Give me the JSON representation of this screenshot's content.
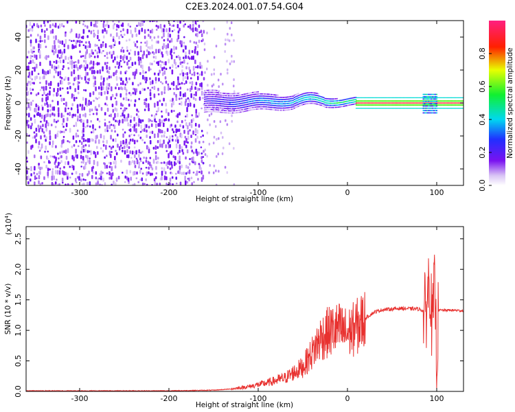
{
  "title": "C2E3.2024.001.07.54.G04",
  "chart_data": [
    {
      "type": "heatmap",
      "xlabel": "Height of straight line (km)",
      "ylabel": "Frequency (Hz)",
      "xlim": [
        -360,
        130
      ],
      "ylim": [
        -50,
        50
      ],
      "xticks": [
        -300,
        -200,
        -100,
        0,
        100
      ],
      "yticks": [
        -40,
        -20,
        0,
        20,
        40
      ],
      "colorbar": {
        "label": "Normalized spectral amplitude",
        "range": [
          0,
          1
        ],
        "ticks": [
          "0.0",
          "0.2",
          "0.4",
          "0.6",
          "0.8"
        ],
        "colormap": "rainbow (white→violet→blue→cyan→green→yellow→red→magenta)"
      },
      "features": [
        {
          "x_range": [
            -360,
            -160
          ],
          "description": "broadband noise, amplitude ~0.05–0.2, all frequencies"
        },
        {
          "x_range": [
            -160,
            10
          ],
          "description": "signal band near 0 Hz, amplitude rising to ~0.5"
        },
        {
          "x_range": [
            10,
            130
          ],
          "description": "narrow carrier line at 0 Hz, amplitude ~0.9"
        }
      ]
    },
    {
      "type": "line",
      "xlabel": "Height of straight line (km)",
      "ylabel": "SNR (10 * v/v)",
      "yscale_note": "(x10^4)",
      "xlim": [
        -360,
        130
      ],
      "ylim": [
        0,
        2.7
      ],
      "xticks": [
        -300,
        -200,
        -100,
        0,
        100
      ],
      "yticks": [
        0.0,
        0.5,
        1.0,
        1.5,
        2.0,
        2.5
      ],
      "color": "#e8312f",
      "x": [
        -360,
        -300,
        -200,
        -150,
        -130,
        -110,
        -90,
        -70,
        -50,
        -40,
        -30,
        -20,
        -10,
        0,
        10,
        20,
        30,
        40,
        60,
        80,
        88,
        92,
        95,
        98,
        100,
        102,
        110,
        120,
        130
      ],
      "values": [
        0.01,
        0.01,
        0.01,
        0.02,
        0.04,
        0.08,
        0.14,
        0.22,
        0.4,
        0.62,
        0.88,
        0.98,
        1.02,
        0.95,
        1.05,
        1.2,
        1.3,
        1.34,
        1.36,
        1.35,
        1.3,
        1.9,
        1.0,
        1.8,
        0.4,
        1.33,
        1.33,
        1.33,
        1.32
      ]
    }
  ]
}
